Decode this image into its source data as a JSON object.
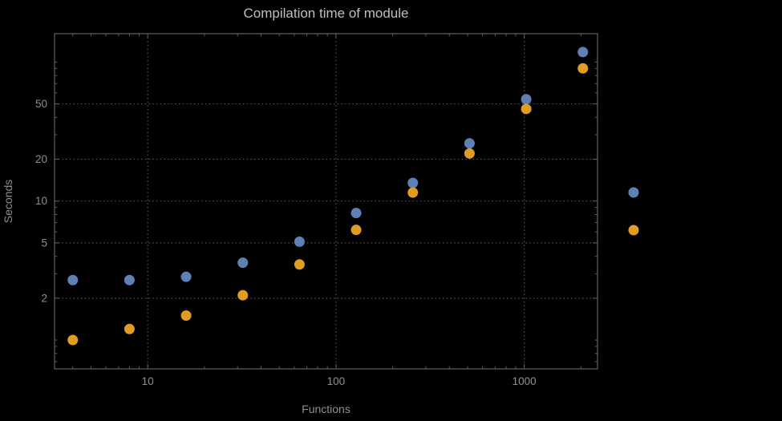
{
  "chart_data": {
    "type": "scatter",
    "scale": "log-log",
    "title": "Compilation time of module",
    "xlabel": "Functions",
    "ylabel": "Seconds",
    "x": [
      4,
      8,
      16,
      32,
      64,
      128,
      256,
      512,
      1024,
      2048
    ],
    "series": [
      {
        "name": "series-blue",
        "color": "#5e81b5",
        "values": [
          2.7,
          2.7,
          2.85,
          3.6,
          5.1,
          8.2,
          13.5,
          26,
          54,
          118
        ]
      },
      {
        "name": "series-orange",
        "color": "#e19c24",
        "values": [
          1.0,
          1.2,
          1.5,
          2.1,
          3.5,
          6.2,
          11.5,
          22,
          46,
          90
        ]
      }
    ],
    "x_ticks": [
      10,
      100,
      1000
    ],
    "y_ticks": [
      2,
      5,
      10,
      20,
      50
    ],
    "x_range": [
      3.2,
      2450
    ],
    "y_range": [
      0.62,
      160
    ],
    "grid": true,
    "legend": {
      "position": "right-outside",
      "markers": [
        "#5e81b5",
        "#e19c24"
      ]
    }
  },
  "style": {
    "background": "#000000",
    "title_color": "#bfbfbf",
    "label_color": "#8f8f8f",
    "frame_color": "#606060",
    "grid_color": "#565656",
    "point_radius": 6.5
  }
}
